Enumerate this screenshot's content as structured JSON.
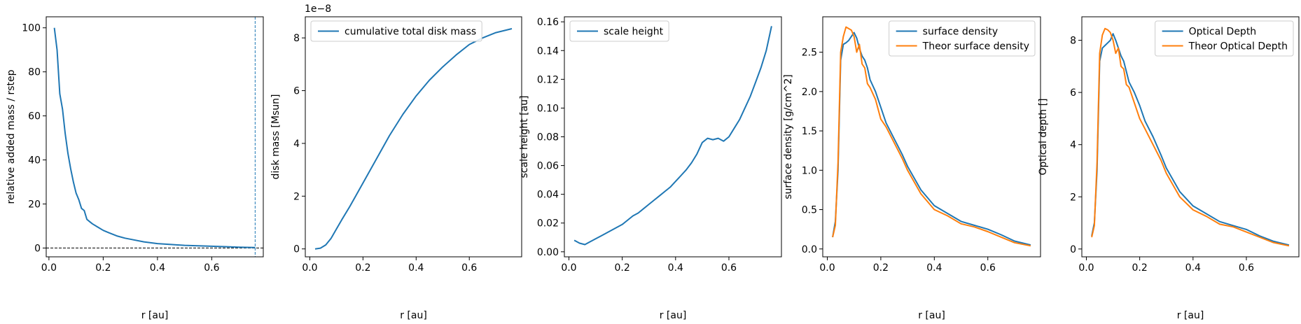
{
  "chart_data": [
    {
      "type": "line",
      "xlabel": "r [au]",
      "ylabel": "relative added mass / rstep",
      "xlim": [
        -0.01,
        0.79
      ],
      "ylim": [
        -4,
        105
      ],
      "xticks": [
        0.0,
        0.2,
        0.4,
        0.6
      ],
      "xticklabels": [
        "0.0",
        "0.2",
        "0.4",
        "0.6"
      ],
      "yticks": [
        0,
        20,
        40,
        60,
        80,
        100
      ],
      "yticklabels": [
        "0",
        "20",
        "40",
        "60",
        "80",
        "100"
      ],
      "legend": [],
      "reference_lines": [
        {
          "orientation": "horizontal",
          "value": 0,
          "style": "dashed",
          "color": "#000000"
        },
        {
          "orientation": "vertical",
          "value": 0.76,
          "style": "dashed",
          "color": "#1f77b4"
        }
      ],
      "series": [
        {
          "color": "#1f77b4",
          "x": [
            0.02,
            0.03,
            0.04,
            0.05,
            0.06,
            0.07,
            0.08,
            0.09,
            0.1,
            0.11,
            0.12,
            0.13,
            0.14,
            0.15,
            0.16,
            0.18,
            0.2,
            0.22,
            0.25,
            0.28,
            0.3,
            0.35,
            0.4,
            0.45,
            0.5,
            0.55,
            0.6,
            0.65,
            0.7,
            0.76
          ],
          "y": [
            100,
            90,
            70,
            63,
            52,
            43,
            36,
            30,
            25,
            22,
            18,
            17,
            13,
            12,
            11,
            9.5,
            8,
            7,
            5.5,
            4.5,
            4,
            2.8,
            2,
            1.6,
            1.2,
            1.0,
            0.8,
            0.6,
            0.4,
            0.2
          ]
        }
      ]
    },
    {
      "type": "line",
      "xlabel": "r [au]",
      "ylabel": "disk mass [Msun]",
      "offset_text": "1e−8",
      "xlim": [
        -0.017,
        0.797
      ],
      "ylim": [
        -0.3,
        8.8
      ],
      "xticks": [
        0.0,
        0.2,
        0.4,
        0.6
      ],
      "xticklabels": [
        "0.0",
        "0.2",
        "0.4",
        "0.6"
      ],
      "yticks": [
        0,
        2,
        4,
        6,
        8
      ],
      "yticklabels": [
        "0",
        "2",
        "4",
        "6",
        "8"
      ],
      "legend": [
        {
          "label": "cumulative total disk mass",
          "color": "#1f77b4"
        }
      ],
      "series": [
        {
          "color": "#1f77b4",
          "x": [
            0.02,
            0.04,
            0.06,
            0.08,
            0.1,
            0.12,
            0.15,
            0.2,
            0.25,
            0.3,
            0.35,
            0.4,
            0.45,
            0.5,
            0.55,
            0.6,
            0.65,
            0.7,
            0.76
          ],
          "y": [
            0.0,
            0.03,
            0.15,
            0.4,
            0.75,
            1.1,
            1.6,
            2.5,
            3.4,
            4.3,
            5.1,
            5.8,
            6.4,
            6.9,
            7.35,
            7.75,
            8.0,
            8.2,
            8.35
          ]
        }
      ]
    },
    {
      "type": "line",
      "xlabel": "r [au]",
      "ylabel": "scale height [au]",
      "xlim": [
        -0.017,
        0.797
      ],
      "ylim": [
        -0.0035,
        0.1635
      ],
      "xticks": [
        0.0,
        0.2,
        0.4,
        0.6
      ],
      "xticklabels": [
        "0.0",
        "0.2",
        "0.4",
        "0.6"
      ],
      "yticks": [
        0.0,
        0.02,
        0.04,
        0.06,
        0.08,
        0.1,
        0.12,
        0.14,
        0.16
      ],
      "yticklabels": [
        "0.00",
        "0.02",
        "0.04",
        "0.06",
        "0.08",
        "0.10",
        "0.12",
        "0.14",
        "0.16"
      ],
      "legend": [
        {
          "label": "scale height",
          "color": "#1f77b4"
        }
      ],
      "series": [
        {
          "color": "#1f77b4",
          "x": [
            0.02,
            0.04,
            0.06,
            0.08,
            0.1,
            0.12,
            0.14,
            0.16,
            0.18,
            0.2,
            0.22,
            0.24,
            0.26,
            0.28,
            0.3,
            0.32,
            0.34,
            0.36,
            0.38,
            0.4,
            0.42,
            0.44,
            0.46,
            0.48,
            0.5,
            0.52,
            0.54,
            0.56,
            0.58,
            0.6,
            0.62,
            0.64,
            0.66,
            0.68,
            0.7,
            0.72,
            0.74,
            0.76
          ],
          "y": [
            0.008,
            0.006,
            0.005,
            0.007,
            0.009,
            0.011,
            0.013,
            0.015,
            0.017,
            0.019,
            0.022,
            0.025,
            0.027,
            0.03,
            0.033,
            0.036,
            0.039,
            0.042,
            0.045,
            0.049,
            0.053,
            0.057,
            0.062,
            0.068,
            0.076,
            0.079,
            0.078,
            0.079,
            0.077,
            0.08,
            0.086,
            0.092,
            0.1,
            0.108,
            0.118,
            0.128,
            0.14,
            0.157
          ]
        }
      ]
    },
    {
      "type": "line",
      "xlabel": "r [au]",
      "ylabel": "surface density [g/cm^2]",
      "xlim": [
        -0.017,
        0.797
      ],
      "ylim": [
        -0.1,
        2.95
      ],
      "xticks": [
        0.0,
        0.2,
        0.4,
        0.6
      ],
      "xticklabels": [
        "0.0",
        "0.2",
        "0.4",
        "0.6"
      ],
      "yticks": [
        0.0,
        0.5,
        1.0,
        1.5,
        2.0,
        2.5
      ],
      "yticklabels": [
        "0.0",
        "0.5",
        "1.0",
        "1.5",
        "2.0",
        "2.5"
      ],
      "legend": [
        {
          "label": "surface density",
          "color": "#1f77b4"
        },
        {
          "label": "Theor surface density",
          "color": "#ff7f0e"
        }
      ],
      "series": [
        {
          "name": "surface density",
          "color": "#1f77b4",
          "x": [
            0.02,
            0.03,
            0.04,
            0.05,
            0.06,
            0.07,
            0.08,
            0.09,
            0.1,
            0.11,
            0.12,
            0.13,
            0.14,
            0.15,
            0.16,
            0.18,
            0.2,
            0.22,
            0.25,
            0.28,
            0.3,
            0.35,
            0.4,
            0.45,
            0.5,
            0.55,
            0.6,
            0.65,
            0.7,
            0.76
          ],
          "y": [
            0.15,
            0.35,
            1.0,
            2.4,
            2.6,
            2.62,
            2.65,
            2.7,
            2.75,
            2.68,
            2.55,
            2.45,
            2.4,
            2.3,
            2.15,
            2.0,
            1.8,
            1.6,
            1.4,
            1.2,
            1.05,
            0.75,
            0.55,
            0.45,
            0.35,
            0.3,
            0.25,
            0.18,
            0.1,
            0.05
          ]
        },
        {
          "name": "Theor surface density",
          "color": "#ff7f0e",
          "x": [
            0.02,
            0.03,
            0.04,
            0.05,
            0.06,
            0.07,
            0.08,
            0.09,
            0.1,
            0.11,
            0.12,
            0.13,
            0.14,
            0.15,
            0.16,
            0.18,
            0.2,
            0.22,
            0.25,
            0.28,
            0.3,
            0.35,
            0.4,
            0.45,
            0.5,
            0.55,
            0.6,
            0.65,
            0.7,
            0.76
          ],
          "y": [
            0.15,
            0.3,
            1.1,
            2.5,
            2.7,
            2.82,
            2.8,
            2.78,
            2.7,
            2.5,
            2.6,
            2.35,
            2.3,
            2.1,
            2.05,
            1.9,
            1.65,
            1.55,
            1.35,
            1.15,
            1.0,
            0.7,
            0.5,
            0.42,
            0.32,
            0.28,
            0.22,
            0.15,
            0.08,
            0.04
          ]
        }
      ]
    },
    {
      "type": "line",
      "xlabel": "r [au]",
      "ylabel": "Optical depth []",
      "xlim": [
        -0.017,
        0.797
      ],
      "ylim": [
        -0.3,
        8.9
      ],
      "xticks": [
        0.0,
        0.2,
        0.4,
        0.6
      ],
      "xticklabels": [
        "0.0",
        "0.2",
        "0.4",
        "0.6"
      ],
      "yticks": [
        0,
        2,
        4,
        6,
        8
      ],
      "yticklabels": [
        "0",
        "2",
        "4",
        "6",
        "8"
      ],
      "legend": [
        {
          "label": "Optical Depth",
          "color": "#1f77b4"
        },
        {
          "label": "Theor Optical Depth",
          "color": "#ff7f0e"
        }
      ],
      "series": [
        {
          "name": "Optical Depth",
          "color": "#1f77b4",
          "x": [
            0.02,
            0.03,
            0.04,
            0.05,
            0.06,
            0.07,
            0.08,
            0.09,
            0.1,
            0.11,
            0.12,
            0.13,
            0.14,
            0.15,
            0.16,
            0.18,
            0.2,
            0.22,
            0.25,
            0.28,
            0.3,
            0.35,
            0.4,
            0.45,
            0.5,
            0.55,
            0.6,
            0.65,
            0.7,
            0.76
          ],
          "y": [
            0.5,
            1.0,
            3.0,
            7.2,
            7.7,
            7.8,
            7.9,
            8.0,
            8.25,
            8.0,
            7.7,
            7.4,
            7.2,
            6.8,
            6.4,
            6.0,
            5.5,
            4.9,
            4.3,
            3.6,
            3.1,
            2.2,
            1.65,
            1.35,
            1.05,
            0.9,
            0.75,
            0.5,
            0.3,
            0.15
          ]
        },
        {
          "name": "Theor Optical Depth",
          "color": "#ff7f0e",
          "x": [
            0.02,
            0.03,
            0.04,
            0.05,
            0.06,
            0.07,
            0.08,
            0.09,
            0.1,
            0.11,
            0.12,
            0.13,
            0.14,
            0.15,
            0.16,
            0.18,
            0.2,
            0.22,
            0.25,
            0.28,
            0.3,
            0.35,
            0.4,
            0.45,
            0.5,
            0.55,
            0.6,
            0.65,
            0.7,
            0.76
          ],
          "y": [
            0.45,
            0.9,
            3.3,
            7.5,
            8.2,
            8.45,
            8.4,
            8.3,
            8.0,
            7.5,
            7.7,
            7.0,
            6.9,
            6.3,
            6.2,
            5.6,
            5.0,
            4.6,
            4.0,
            3.4,
            2.9,
            2.0,
            1.5,
            1.25,
            0.95,
            0.85,
            0.65,
            0.45,
            0.25,
            0.12
          ]
        }
      ]
    }
  ]
}
